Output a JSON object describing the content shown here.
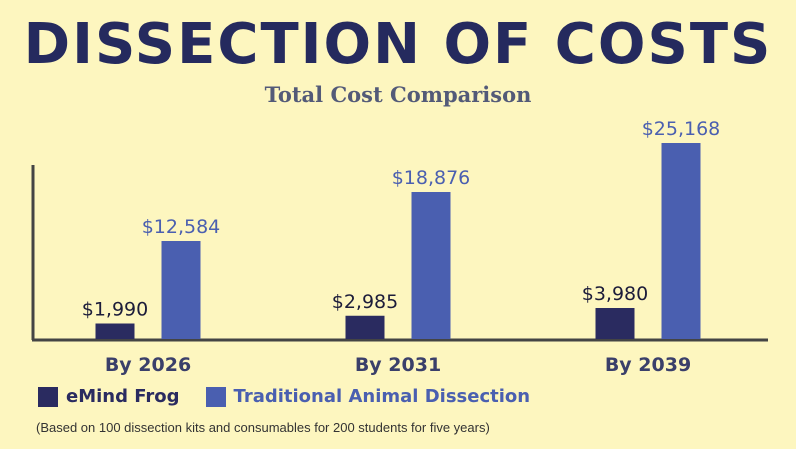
{
  "title": "DISSECTION OF COSTS",
  "subtitle": "Total Cost Comparison",
  "footnote": "(Based on 100 dissection kits and consumables for 200 students for five years)",
  "colors": {
    "background": "#fdf6bf",
    "title": "#252a5e",
    "emind": "#2a2b60",
    "traditional": "#4a5fb0",
    "axis": "#444444"
  },
  "chart_data": {
    "type": "bar",
    "title": "Total Cost Comparison",
    "categories": [
      "By 2026",
      "By 2031",
      "By 2039"
    ],
    "series": [
      {
        "name": "eMind Frog",
        "values": [
          1990,
          2985,
          3980
        ],
        "labels": [
          "$1,990",
          "$2,985",
          "$3,980"
        ]
      },
      {
        "name": "Traditional Animal Dissection",
        "values": [
          12584,
          18876,
          25168
        ],
        "labels": [
          "$12,584",
          "$18,876",
          "$25,168"
        ]
      }
    ],
    "ylim": [
      0,
      30000
    ],
    "grid": false,
    "legend": "bottom-left"
  }
}
